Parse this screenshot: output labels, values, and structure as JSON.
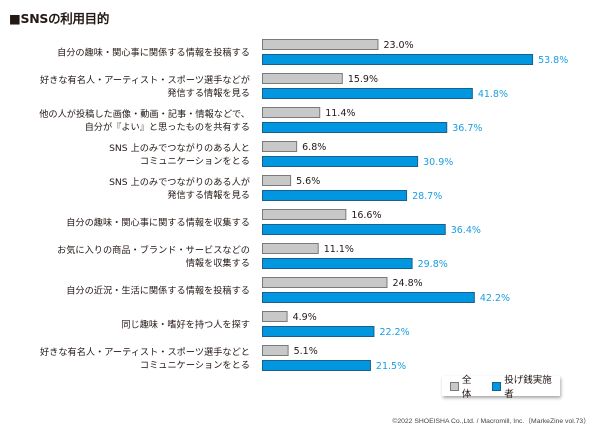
{
  "title": "■SNSの利用目的",
  "colors": {
    "all_fill": "#c8c8c8",
    "all_stroke": "#7a7a7a",
    "tip_fill": "#0097e0",
    "tip_stroke": "#1b5f8c",
    "tip_text": "#1a9ee0"
  },
  "legend": {
    "all": "全体",
    "tip": "投げ銭実施者"
  },
  "footer": "©2022 SHOEISHA Co.,Ltd. / Macromill, Inc.（MarkeZine vol.73）",
  "chart_data": {
    "type": "bar",
    "orientation": "horizontal",
    "title": "■SNSの利用目的",
    "xlabel": "",
    "ylabel": "",
    "xlim": [
      0,
      60
    ],
    "grid": false,
    "legend_position": "bottom-right",
    "categories": [
      [
        "自分の趣味・関心事に関係する情報を投稿する"
      ],
      [
        "好きな有名人・アーティスト・スポーツ選手などが",
        "発信する情報を見る"
      ],
      [
        "他の人が投稿した画像・動画・記事・情報などで、",
        "自分が『よい』と思ったものを共有する"
      ],
      [
        "SNS 上のみでつながりのある人と",
        "コミュニケーションをとる"
      ],
      [
        "SNS 上のみでつながりのある人が",
        "発信する情報を見る"
      ],
      [
        "自分の趣味・関心事に関する情報を収集する"
      ],
      [
        "お気に入りの商品・ブランド・サービスなどの",
        "情報を収集する"
      ],
      [
        "自分の近況・生活に関係する情報を投稿する"
      ],
      [
        "同じ趣味・嗜好を持つ人を探す"
      ],
      [
        "好きな有名人・アーティスト・スポーツ選手などと",
        "コミュニケーションをとる"
      ]
    ],
    "series": [
      {
        "name": "全体",
        "values": [
          23.0,
          15.9,
          11.4,
          6.8,
          5.6,
          16.6,
          11.1,
          24.8,
          4.9,
          5.1
        ]
      },
      {
        "name": "投げ銭実施者",
        "values": [
          53.8,
          41.8,
          36.7,
          30.9,
          28.7,
          36.4,
          29.8,
          42.2,
          22.2,
          21.5
        ]
      }
    ],
    "value_format": "%.1f%"
  }
}
